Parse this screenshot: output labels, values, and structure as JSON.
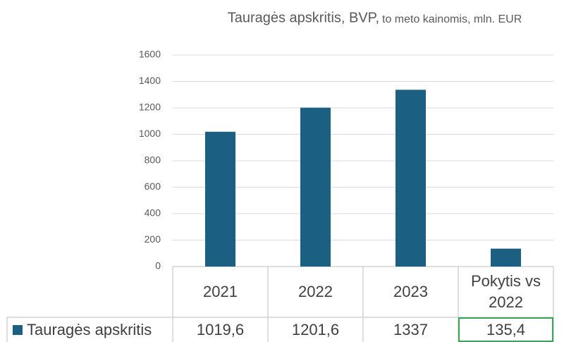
{
  "chart_data": {
    "type": "bar",
    "title": "Tauragės apskritis, BVP,",
    "subtitle": "to meto kainomis, mln. EUR",
    "categories": [
      "2021",
      "2022",
      "2023",
      "Pokytis vs 2022"
    ],
    "series": [
      {
        "name": "Tauragės apskritis",
        "color": "#1b5f82",
        "values": [
          1019.6,
          1201.6,
          1337,
          135.4
        ],
        "value_labels": [
          "1019,6",
          "1201,6",
          "1337",
          "135,4"
        ]
      }
    ],
    "ylim": [
      0,
      1600
    ],
    "yticks": [
      0,
      200,
      400,
      600,
      800,
      1000,
      1200,
      1400,
      1600
    ],
    "grid": true,
    "highlight_color": "#3aa655"
  }
}
